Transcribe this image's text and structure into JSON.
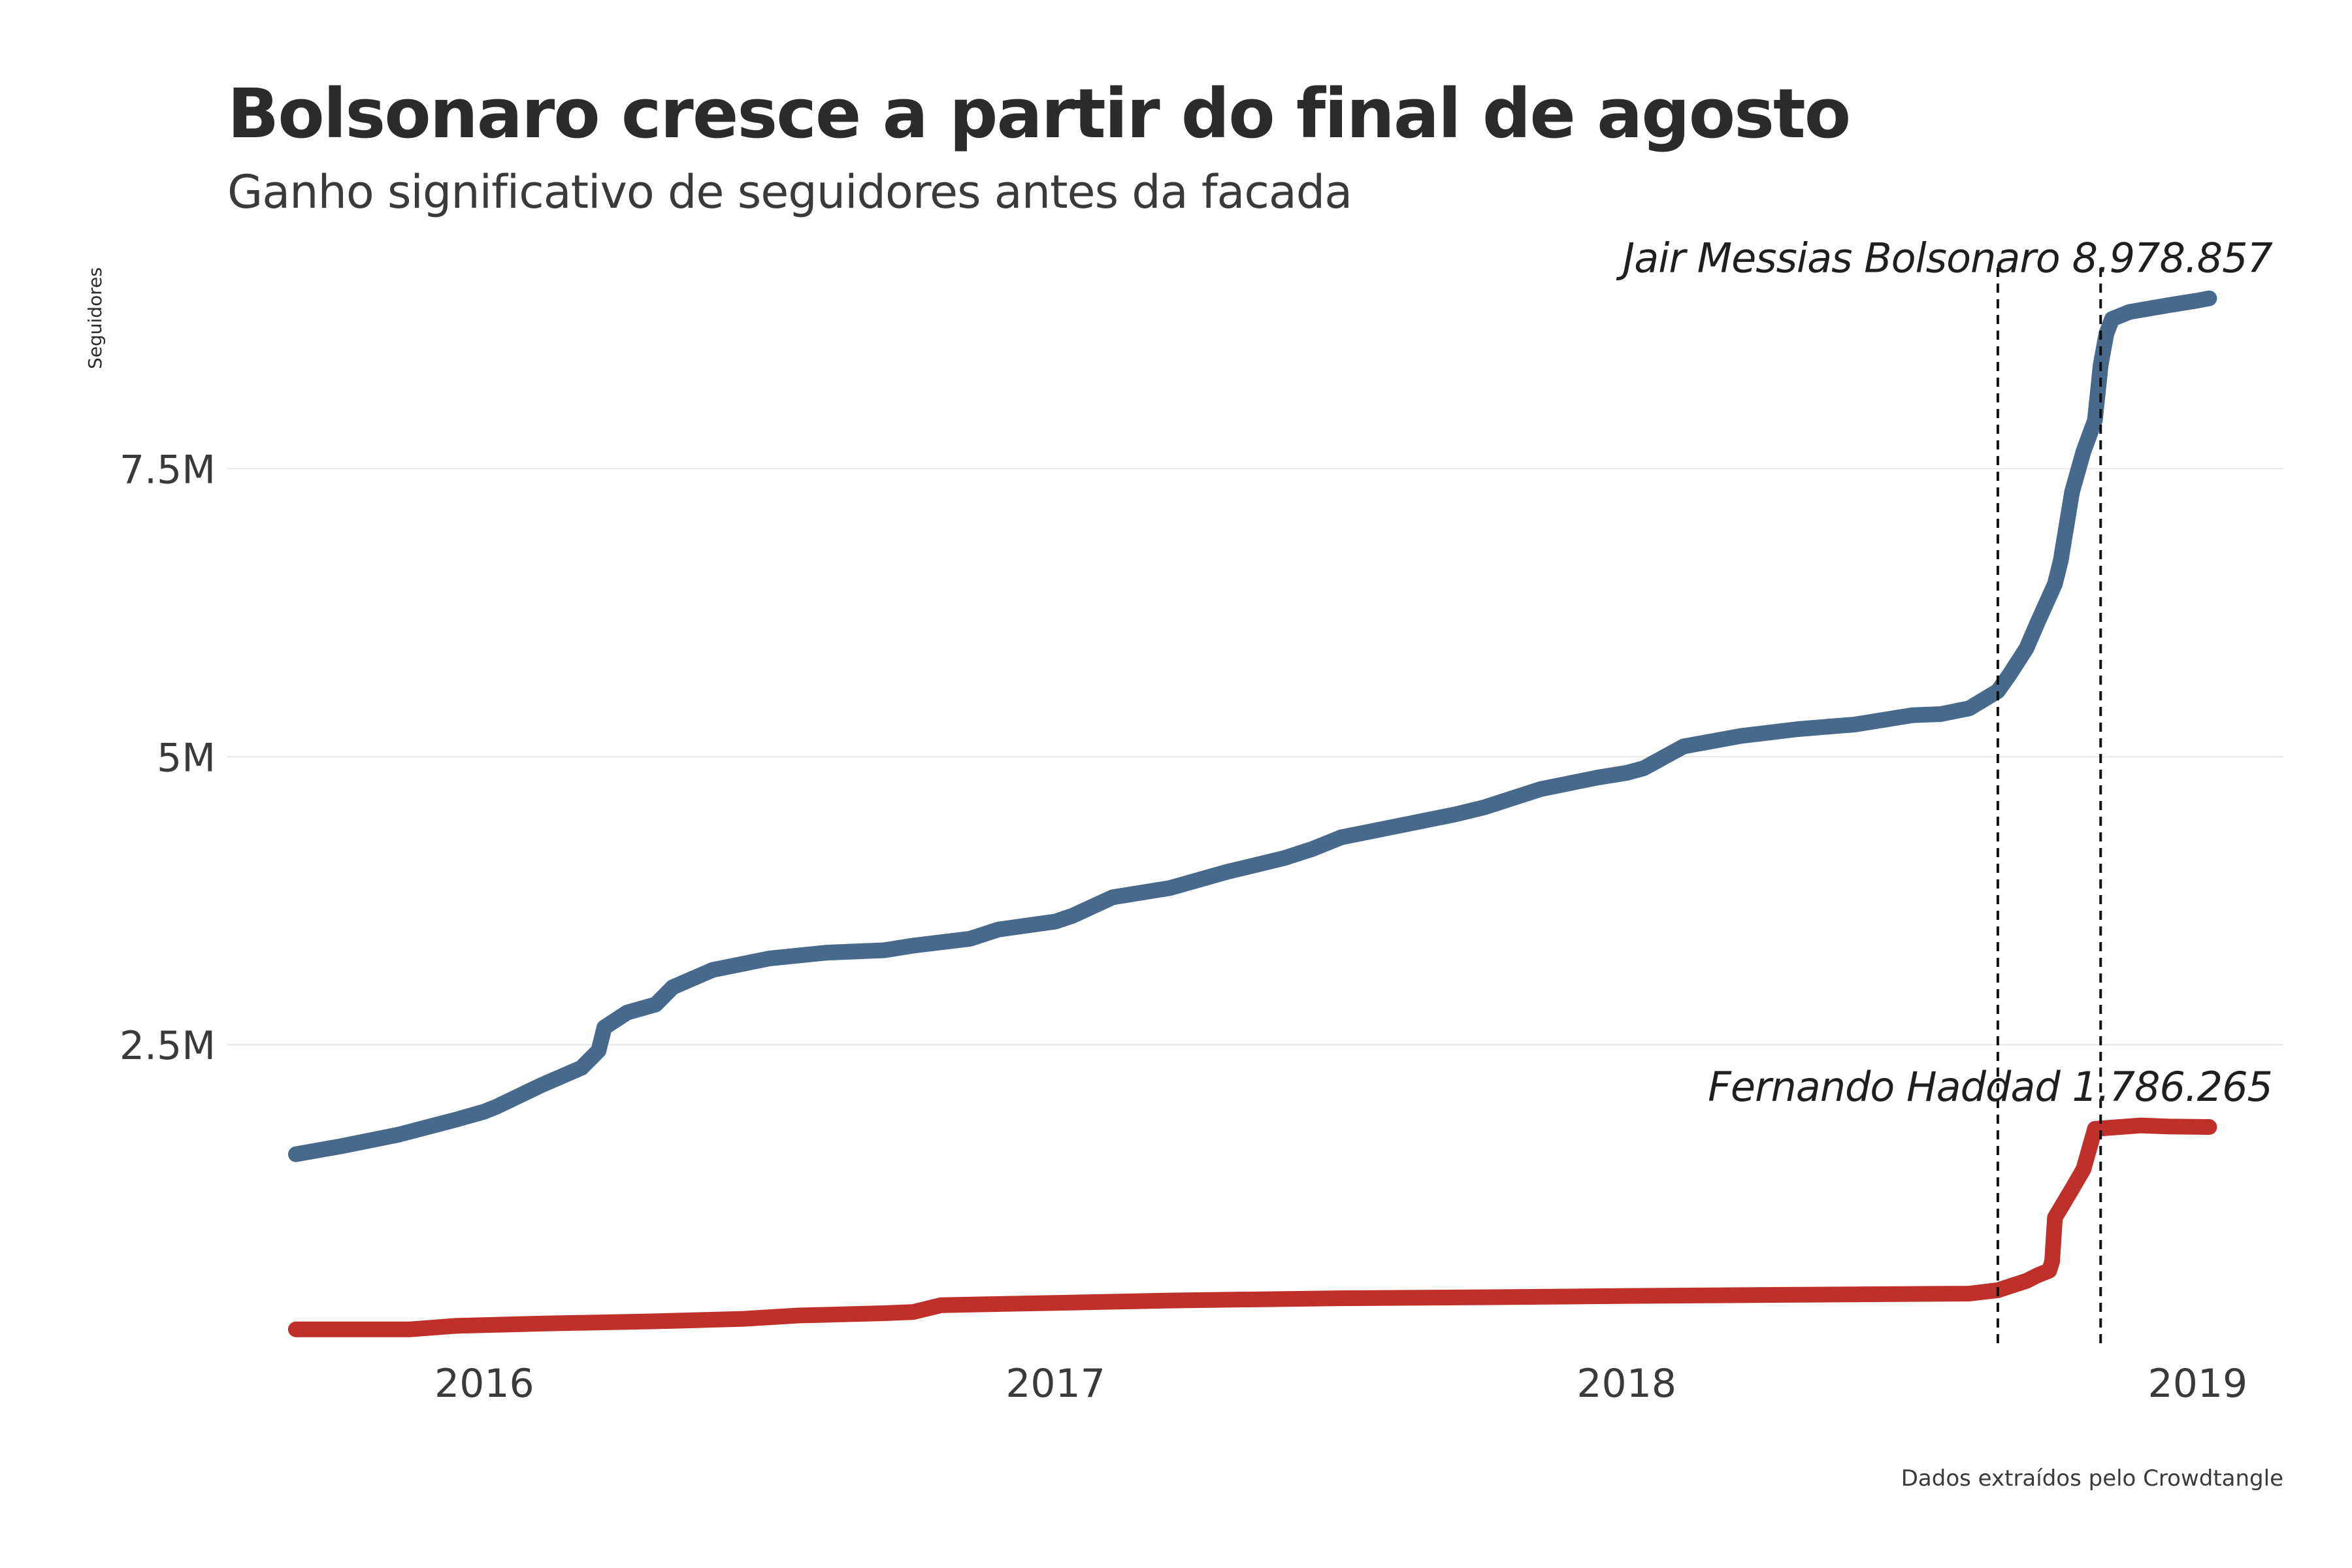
{
  "chart_data": {
    "type": "line",
    "title": "Bolsonaro cresce a partir do final de agosto",
    "subtitle": "Ganho significativo de seguidores antes da facada",
    "ylabel": "Seguidores",
    "caption": "Dados extraídos pelo Crowdtangle",
    "ylim": [
      0,
      9300000
    ],
    "xlim": [
      2015.55,
      2019.15
    ],
    "y_ticks": [
      {
        "value": 2500000,
        "label": "2.5M"
      },
      {
        "value": 5000000,
        "label": "5M"
      },
      {
        "value": 7500000,
        "label": "7.5M"
      }
    ],
    "x_ticks": [
      {
        "value": 2016,
        "label": "2016"
      },
      {
        "value": 2017,
        "label": "2017"
      },
      {
        "value": 2018,
        "label": "2018"
      },
      {
        "value": 2019,
        "label": "2019"
      }
    ],
    "grid": true,
    "legend": "none",
    "vlines": [
      2018.65,
      2018.83
    ],
    "series": [
      {
        "name": "Jair Messias Bolsonaro",
        "end_label": "8.978.857",
        "color": "#46698c",
        "x": [
          2015.67,
          2015.75,
          2015.85,
          2015.95,
          2016.0,
          2016.02,
          2016.1,
          2016.17,
          2016.2,
          2016.21,
          2016.25,
          2016.3,
          2016.33,
          2016.4,
          2016.5,
          2016.6,
          2016.7,
          2016.75,
          2016.85,
          2016.9,
          2017.0,
          2017.03,
          2017.1,
          2017.2,
          2017.3,
          2017.4,
          2017.45,
          2017.5,
          2017.6,
          2017.7,
          2017.75,
          2017.85,
          2017.95,
          2018.0,
          2018.03,
          2018.1,
          2018.2,
          2018.3,
          2018.4,
          2018.5,
          2018.55,
          2018.6,
          2018.65,
          2018.67,
          2018.7,
          2018.72,
          2018.75,
          2018.76,
          2018.78,
          2018.8,
          2018.82,
          2018.83,
          2018.84,
          2018.85,
          2018.88,
          2018.95,
          2019.0,
          2019.02
        ],
        "values": [
          1550000,
          1620000,
          1720000,
          1850000,
          1920000,
          1960000,
          2150000,
          2300000,
          2450000,
          2650000,
          2780000,
          2850000,
          3000000,
          3150000,
          3250000,
          3300000,
          3320000,
          3360000,
          3420000,
          3500000,
          3570000,
          3620000,
          3780000,
          3860000,
          4000000,
          4120000,
          4200000,
          4300000,
          4400000,
          4500000,
          4560000,
          4720000,
          4820000,
          4860000,
          4900000,
          5090000,
          5180000,
          5240000,
          5280000,
          5360000,
          5370000,
          5420000,
          5570000,
          5710000,
          5940000,
          6170000,
          6500000,
          6700000,
          7300000,
          7650000,
          7920000,
          8400000,
          8670000,
          8800000,
          8860000,
          8920000,
          8960000,
          8978857
        ]
      },
      {
        "name": "Fernando Haddad",
        "end_label": "1.786.265",
        "color": "#c0302a",
        "x": [
          2015.67,
          2015.87,
          2015.95,
          2016.1,
          2016.3,
          2016.45,
          2016.55,
          2016.7,
          2016.75,
          2016.8,
          2017.0,
          2017.2,
          2017.5,
          2017.8,
          2018.0,
          2018.3,
          2018.6,
          2018.65,
          2018.7,
          2018.72,
          2018.74,
          2018.745,
          2018.75,
          2018.78,
          2018.8,
          2018.82,
          2018.9,
          2018.95,
          2019.02
        ],
        "values": [
          30000,
          30000,
          60000,
          80000,
          100000,
          120000,
          150000,
          170000,
          180000,
          240000,
          260000,
          280000,
          300000,
          310000,
          320000,
          330000,
          340000,
          370000,
          450000,
          500000,
          540000,
          620000,
          1000000,
          1250000,
          1420000,
          1770000,
          1800000,
          1790000,
          1786265
        ]
      }
    ]
  }
}
